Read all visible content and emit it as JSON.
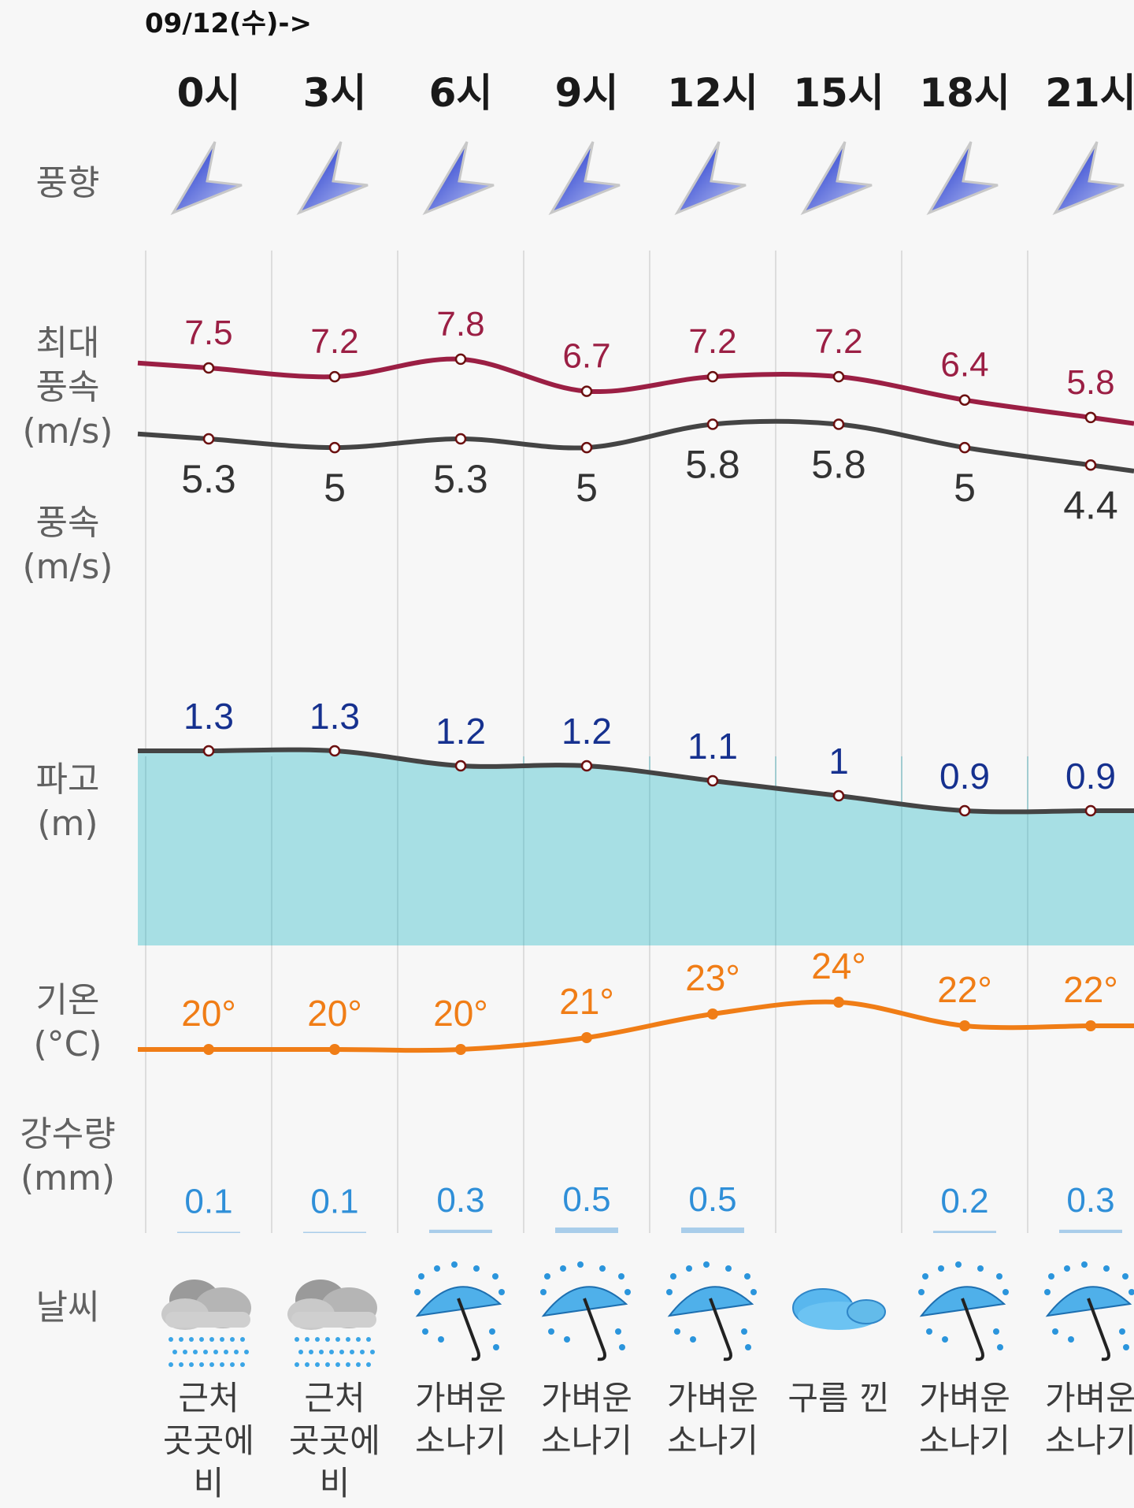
{
  "date_label": "09/12(수)->",
  "row_labels": {
    "wind_dir": "풍향",
    "max_wind": "최대\n풍속\n(m/s)",
    "wind": "풍속\n(m/s)",
    "wave": "파고\n(m)",
    "temp": "기온\n(°C)",
    "rain": "강수량\n(mm)",
    "weather": "날씨"
  },
  "colors": {
    "max_wind": "#9b1f44",
    "wind": "#444444",
    "wave_line": "#444444",
    "wave_fill": "#a7dfe4",
    "wave_label": "#16318f",
    "temp": "#f07d16",
    "rain_label": "#2f8fd8",
    "rain_bar": "#a9cdea",
    "arrow": "#1f3bd8",
    "grid": "#dddddd"
  },
  "chart_data": {
    "type": "line",
    "x": [
      "0시",
      "3시",
      "6시",
      "9시",
      "12시",
      "15시",
      "18시",
      "21시"
    ],
    "series": [
      {
        "key": "max_wind",
        "values": [
          7.5,
          7.2,
          7.8,
          6.7,
          7.2,
          7.2,
          6.4,
          5.8
        ],
        "labels": [
          "7.5",
          "7.2",
          "7.8",
          "6.7",
          "7.2",
          "7.2",
          "6.4",
          "5.8"
        ]
      },
      {
        "key": "wind",
        "values": [
          5.3,
          5,
          5.3,
          5,
          5.8,
          5.8,
          5,
          4.4
        ],
        "labels": [
          "5.3",
          "5",
          "5.3",
          "5",
          "5.8",
          "5.8",
          "5",
          "4.4"
        ]
      },
      {
        "key": "wave",
        "values": [
          1.3,
          1.3,
          1.2,
          1.2,
          1.1,
          1,
          0.9,
          0.9
        ],
        "labels": [
          "1.3",
          "1.3",
          "1.2",
          "1.2",
          "1.1",
          "1",
          "0.9",
          "0.9"
        ]
      },
      {
        "key": "temp",
        "values": [
          20,
          20,
          20,
          21,
          23,
          24,
          22,
          22
        ],
        "labels": [
          "20°",
          "20°",
          "20°",
          "21°",
          "23°",
          "24°",
          "22°",
          "22°"
        ]
      },
      {
        "key": "rain",
        "values": [
          0.1,
          0.1,
          0.3,
          0.5,
          0.5,
          0,
          0.2,
          0.3
        ],
        "labels": [
          "0.1",
          "0.1",
          "0.3",
          "0.5",
          "0.5",
          "",
          "0.2",
          "0.3"
        ]
      }
    ],
    "wind_direction": [
      "southwest-wind-arrow",
      "southwest-wind-arrow",
      "southwest-wind-arrow",
      "southwest-wind-arrow",
      "southwest-wind-arrow",
      "southwest-wind-arrow",
      "southwest-wind-arrow",
      "southwest-wind-arrow"
    ],
    "weather": [
      {
        "icon": "rain-cloud-icon",
        "text": "근처\n곳곳에\n비"
      },
      {
        "icon": "rain-cloud-icon",
        "text": "근처\n곳곳에\n비"
      },
      {
        "icon": "umbrella-rain-icon",
        "text": "가벼운\n소나기"
      },
      {
        "icon": "umbrella-rain-icon",
        "text": "가벼운\n소나기"
      },
      {
        "icon": "umbrella-rain-icon",
        "text": "가벼운\n소나기"
      },
      {
        "icon": "cloud-icon",
        "text": "구름 낀"
      },
      {
        "icon": "umbrella-rain-icon",
        "text": "가벼운\n소나기"
      },
      {
        "icon": "umbrella-rain-icon",
        "text": "가벼운\n소나기"
      }
    ],
    "grid": true
  }
}
